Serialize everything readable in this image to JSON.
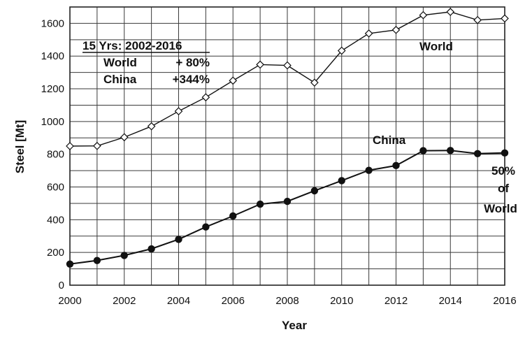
{
  "chart_data": {
    "type": "line",
    "xlabel": "Year",
    "ylabel": "Steel [Mt]",
    "xlim": [
      2000,
      2016
    ],
    "ylim": [
      0,
      1700
    ],
    "grid": true,
    "x_ticks": [
      "2000",
      "2002",
      "2004",
      "2006",
      "2008",
      "2010",
      "2012",
      "2014",
      "2016"
    ],
    "y_ticks": [
      "0",
      "200",
      "400",
      "600",
      "800",
      "1000",
      "1200",
      "1400",
      "1600"
    ],
    "x": [
      2000,
      2001,
      2002,
      2003,
      2004,
      2005,
      2006,
      2007,
      2008,
      2009,
      2010,
      2011,
      2012,
      2013,
      2014,
      2015,
      2016
    ],
    "series": [
      {
        "name": "World",
        "marker": "diamond-open",
        "values": [
          850,
          851,
          904,
          971,
          1063,
          1148,
          1250,
          1348,
          1343,
          1238,
          1433,
          1538,
          1560,
          1650,
          1670,
          1620,
          1630
        ]
      },
      {
        "name": "China",
        "marker": "circle-filled",
        "values": [
          129,
          151,
          182,
          222,
          280,
          356,
          423,
          495,
          512,
          577,
          639,
          702,
          731,
          822,
          823,
          804,
          808
        ]
      }
    ],
    "annotations": {
      "summary_title": "15 Yrs: 2002-2016",
      "summary_world_label": "World",
      "summary_world_value": "+ 80%",
      "summary_china_label": "China",
      "summary_china_value": "+344%",
      "share_line1": "50%",
      "share_line2": "of",
      "share_line3": "World"
    }
  }
}
